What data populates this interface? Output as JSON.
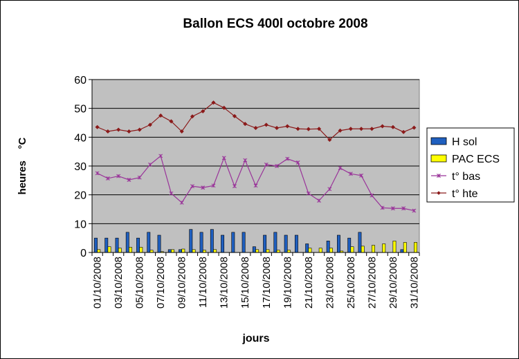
{
  "chart_data": {
    "type": "bar+line",
    "title": "Ballon ECS 400l octobre 2008",
    "ylabel": "heures    °C",
    "xlabel": "jours",
    "ylim": [
      0,
      60
    ],
    "yticks": [
      0,
      10,
      20,
      30,
      40,
      50,
      60
    ],
    "grid": true,
    "legend_position": "right",
    "categories": [
      "01/10/2008",
      "02/10/2008",
      "03/10/2008",
      "04/10/2008",
      "05/10/2008",
      "06/10/2008",
      "07/10/2008",
      "08/10/2008",
      "09/10/2008",
      "10/10/2008",
      "11/10/2008",
      "12/10/2008",
      "13/10/2008",
      "14/10/2008",
      "15/10/2008",
      "16/10/2008",
      "17/10/2008",
      "18/10/2008",
      "19/10/2008",
      "20/10/2008",
      "21/10/2008",
      "22/10/2008",
      "23/10/2008",
      "24/10/2008",
      "25/10/2008",
      "26/10/2008",
      "27/10/2008",
      "28/10/2008",
      "29/10/2008",
      "30/10/2008",
      "31/10/2008"
    ],
    "xtick_labels_shown": [
      "01/10/2008",
      "03/10/2008",
      "05/10/2008",
      "07/10/2008",
      "09/10/2008",
      "11/10/2008",
      "13/10/2008",
      "15/10/2008",
      "17/10/2008",
      "19/10/2008",
      "21/10/2008",
      "23/10/2008",
      "25/10/2008",
      "27/10/2008",
      "29/10/2008",
      "31/10/2008"
    ],
    "series": [
      {
        "name": "H sol",
        "kind": "bar",
        "color": "#1f5fbf",
        "values": [
          5,
          5,
          5,
          7,
          5,
          7,
          6,
          1,
          1,
          8,
          7,
          8,
          6,
          7,
          7,
          2,
          6,
          7,
          6,
          6,
          3,
          0,
          4,
          6,
          5,
          7,
          0,
          0,
          0,
          1,
          0
        ]
      },
      {
        "name": "PAC ECS",
        "kind": "bar",
        "color": "#ffff00",
        "values": [
          1,
          2,
          1.5,
          1.8,
          1.8,
          0.8,
          0.3,
          1,
          1.2,
          1,
          0.8,
          1,
          0,
          0,
          0,
          1,
          1,
          0.8,
          0.8,
          0,
          1.5,
          1.5,
          1.5,
          0.5,
          2,
          2.2,
          2.5,
          3,
          4,
          3.5,
          3.5
        ]
      },
      {
        "name": "t° bas",
        "kind": "line",
        "color": "#993399",
        "values": [
          27.5,
          25.7,
          26.5,
          25.2,
          26,
          30.5,
          33.5,
          20.5,
          17.3,
          23,
          22.5,
          23.2,
          32.8,
          23,
          32,
          23.2,
          30.5,
          30,
          32.5,
          31.2,
          20.5,
          18,
          22,
          29.3,
          27.3,
          26.7,
          19.8,
          15.5,
          15.3,
          15.3,
          14.5
        ]
      },
      {
        "name": "t° hte",
        "kind": "line",
        "color": "#8b1a1a",
        "values": [
          43.5,
          42,
          42.6,
          42,
          42.6,
          44.3,
          47.5,
          45.5,
          42,
          47.2,
          49,
          52,
          50.2,
          47.3,
          44.6,
          43.2,
          44.3,
          43.2,
          43.8,
          42.9,
          42.8,
          42.9,
          39.1,
          42.3,
          42.9,
          42.9,
          42.9,
          43.8,
          43.5,
          41.8,
          43.3
        ]
      }
    ]
  }
}
